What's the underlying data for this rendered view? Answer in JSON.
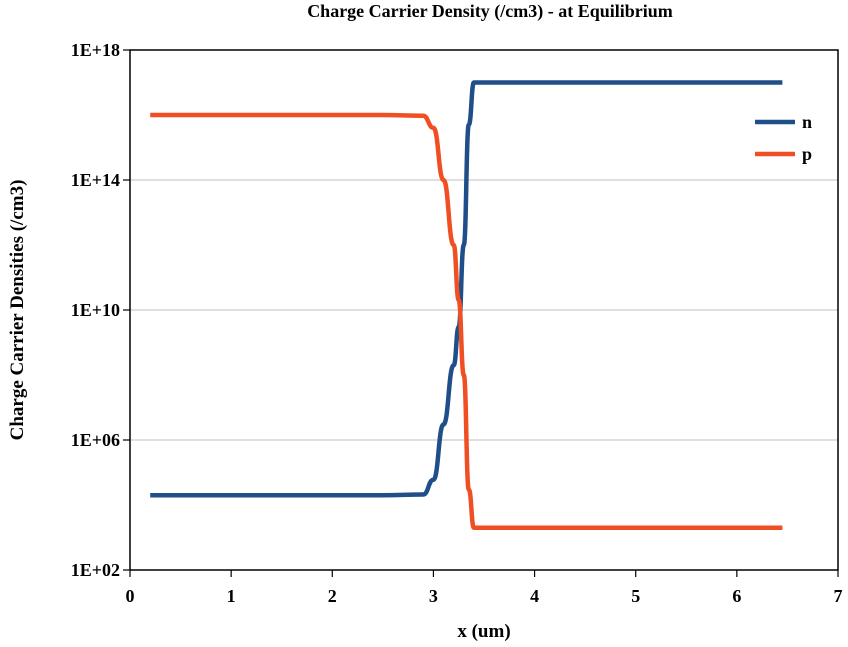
{
  "chart_data": {
    "type": "line",
    "title": "Charge Carrier Density (/cm3) - at Equilibrium",
    "xlabel": "x (um)",
    "ylabel": "Charge Carrier Densities (/cm3)",
    "xlim": [
      0,
      7
    ],
    "ylim": [
      100,
      1e+18
    ],
    "yscale": "log",
    "xticks": [
      0,
      1,
      2,
      3,
      4,
      5,
      6,
      7
    ],
    "xtick_labels": [
      "0",
      "1",
      "2",
      "3",
      "4",
      "5",
      "6",
      "7"
    ],
    "yticks": [
      100,
      1000000.0,
      10000000000.0,
      100000000000000.0,
      1e+18
    ],
    "ytick_labels": [
      "1E+02",
      "1E+06",
      "1E+10",
      "1E+14",
      "1E+18"
    ],
    "grid": "horizontal",
    "legend_position": "top-right",
    "series": [
      {
        "name": "n",
        "color": "#1f4e89",
        "x": [
          0.2,
          2.5,
          2.9,
          3.0,
          3.1,
          3.2,
          3.25,
          3.3,
          3.35,
          3.4,
          3.6,
          6.45
        ],
        "y": [
          20000.0,
          20000.0,
          21000.0,
          60000.0,
          3000000.0,
          200000000.0,
          3000000000.0,
          1000000000000.0,
          5000000000000000.0,
          1e+17,
          1e+17,
          1e+17
        ]
      },
      {
        "name": "p",
        "color": "#f04e23",
        "x": [
          0.2,
          2.5,
          2.9,
          3.0,
          3.1,
          3.2,
          3.25,
          3.3,
          3.35,
          3.4,
          3.6,
          6.45
        ],
        "y": [
          1e+16,
          1e+16,
          9500000000000000.0,
          4000000000000000.0,
          100000000000000.0,
          1000000000000.0,
          20000000000.0,
          100000000.0,
          30000.0,
          2000.0,
          2000.0,
          2000.0
        ]
      }
    ]
  }
}
